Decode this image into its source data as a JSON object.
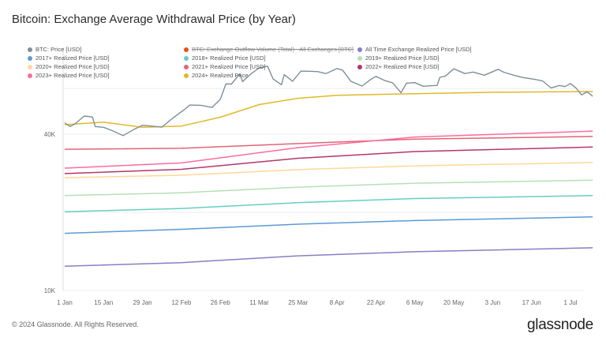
{
  "title": "Bitcoin: Exchange Average Withdrawal Price (by Year)",
  "footer": "© 2024 Glassnode. All Rights Reserved.",
  "logo": "glassnode",
  "chart_data": {
    "type": "line",
    "title": "Bitcoin: Exchange Average Withdrawal Price (by Year)",
    "yscale": "log",
    "ylim": [
      10000,
      86000
    ],
    "y_tick_labels": [
      "10K",
      "40K"
    ],
    "x_tick_labels": [
      "1 Jan",
      "15 Jan",
      "29 Jan",
      "12 Feb",
      "26 Feb",
      "11 Mar",
      "25 Mar",
      "8 Apr",
      "22 Apr",
      "6 May",
      "20 May",
      "3 Jun",
      "17 Jun",
      "1 Jul"
    ],
    "xlim": [
      "2024-01-01",
      "2024-07-09"
    ],
    "grid": true,
    "legend_position": "top",
    "series": [
      {
        "name": "BTC: Price [USD]",
        "color": "#7e8f99",
        "hidden": false,
        "points": [
          [
            "2024-01-01",
            44200
          ],
          [
            "2024-01-03",
            42800
          ],
          [
            "2024-01-05",
            44100
          ],
          [
            "2024-01-08",
            47000
          ],
          [
            "2024-01-11",
            46600
          ],
          [
            "2024-01-12",
            42800
          ],
          [
            "2024-01-15",
            42500
          ],
          [
            "2024-01-18",
            41300
          ],
          [
            "2024-01-22",
            39500
          ],
          [
            "2024-01-26",
            41800
          ],
          [
            "2024-01-29",
            43300
          ],
          [
            "2024-02-01",
            43000
          ],
          [
            "2024-02-05",
            42600
          ],
          [
            "2024-02-08",
            45300
          ],
          [
            "2024-02-10",
            47100
          ],
          [
            "2024-02-13",
            49700
          ],
          [
            "2024-02-15",
            51800
          ],
          [
            "2024-02-19",
            51700
          ],
          [
            "2024-02-23",
            50700
          ],
          [
            "2024-02-26",
            54500
          ],
          [
            "2024-02-28",
            62500
          ],
          [
            "2024-03-01",
            62400
          ],
          [
            "2024-03-04",
            68300
          ],
          [
            "2024-03-05",
            63800
          ],
          [
            "2024-03-08",
            68300
          ],
          [
            "2024-03-11",
            72100
          ],
          [
            "2024-03-14",
            73100
          ],
          [
            "2024-03-16",
            65300
          ],
          [
            "2024-03-19",
            62000
          ],
          [
            "2024-03-20",
            67800
          ],
          [
            "2024-03-23",
            64000
          ],
          [
            "2024-03-26",
            70000
          ],
          [
            "2024-03-29",
            69900
          ],
          [
            "2024-04-01",
            69700
          ],
          [
            "2024-04-04",
            68500
          ],
          [
            "2024-04-08",
            71600
          ],
          [
            "2024-04-10",
            70600
          ],
          [
            "2024-04-13",
            63900
          ],
          [
            "2024-04-17",
            61300
          ],
          [
            "2024-04-20",
            64900
          ],
          [
            "2024-04-22",
            66800
          ],
          [
            "2024-04-25",
            64500
          ],
          [
            "2024-04-28",
            63100
          ],
          [
            "2024-05-01",
            57800
          ],
          [
            "2024-05-03",
            62900
          ],
          [
            "2024-05-06",
            63200
          ],
          [
            "2024-05-09",
            61200
          ],
          [
            "2024-05-12",
            61500
          ],
          [
            "2024-05-14",
            61600
          ],
          [
            "2024-05-15",
            66200
          ],
          [
            "2024-05-17",
            67000
          ],
          [
            "2024-05-20",
            71400
          ],
          [
            "2024-05-24",
            68500
          ],
          [
            "2024-05-27",
            69400
          ],
          [
            "2024-05-31",
            67500
          ],
          [
            "2024-06-05",
            71100
          ],
          [
            "2024-06-07",
            69300
          ],
          [
            "2024-06-11",
            67300
          ],
          [
            "2024-06-14",
            66100
          ],
          [
            "2024-06-18",
            65100
          ],
          [
            "2024-06-21",
            64100
          ],
          [
            "2024-06-24",
            60300
          ],
          [
            "2024-06-27",
            61600
          ],
          [
            "2024-06-29",
            61000
          ],
          [
            "2024-07-01",
            62700
          ],
          [
            "2024-07-03",
            60200
          ],
          [
            "2024-07-05",
            56700
          ],
          [
            "2024-07-07",
            58200
          ],
          [
            "2024-07-09",
            56000
          ]
        ]
      },
      {
        "name": "BTC: Exchange Outflow Volume (Total) - All Exchanges [BTC]",
        "color": "#f24d17",
        "hidden": true,
        "points": []
      },
      {
        "name": "All Time Exchange Realized Price [USD]",
        "color": "#8c7cc4",
        "hidden": false,
        "points": [
          [
            "2024-01-01",
            12400
          ],
          [
            "2024-02-12",
            12800
          ],
          [
            "2024-03-25",
            13600
          ],
          [
            "2024-05-06",
            14100
          ],
          [
            "2024-07-09",
            14600
          ]
        ]
      },
      {
        "name": "2017+ Realized Price [USD]",
        "color": "#5b9bd5",
        "hidden": false,
        "points": [
          [
            "2024-01-01",
            16600
          ],
          [
            "2024-02-12",
            17200
          ],
          [
            "2024-03-25",
            18000
          ],
          [
            "2024-05-06",
            18600
          ],
          [
            "2024-07-09",
            19200
          ]
        ]
      },
      {
        "name": "2018+ Realized Price [USD]",
        "color": "#63cfc0",
        "hidden": false,
        "points": [
          [
            "2024-01-01",
            20100
          ],
          [
            "2024-02-12",
            20700
          ],
          [
            "2024-03-25",
            21800
          ],
          [
            "2024-05-06",
            22600
          ],
          [
            "2024-07-09",
            23200
          ]
        ]
      },
      {
        "name": "2019+ Realized Price [USD]",
        "color": "#b5e0b5",
        "hidden": false,
        "points": [
          [
            "2024-01-01",
            23200
          ],
          [
            "2024-02-12",
            23800
          ],
          [
            "2024-03-25",
            25000
          ],
          [
            "2024-05-06",
            25900
          ],
          [
            "2024-07-09",
            26600
          ]
        ]
      },
      {
        "name": "2020+ Realized Price [USD]",
        "color": "#ffd79a",
        "hidden": false,
        "points": [
          [
            "2024-01-01",
            27200
          ],
          [
            "2024-02-12",
            27800
          ],
          [
            "2024-03-25",
            29200
          ],
          [
            "2024-05-06",
            30200
          ],
          [
            "2024-07-09",
            31100
          ]
        ]
      },
      {
        "name": "2021+ Realized Price [USD]",
        "color": "#e06477",
        "hidden": false,
        "points": [
          [
            "2024-01-01",
            35000
          ],
          [
            "2024-02-12",
            35300
          ],
          [
            "2024-03-25",
            36800
          ],
          [
            "2024-05-06",
            38300
          ],
          [
            "2024-07-09",
            39200
          ]
        ]
      },
      {
        "name": "2022+ Realized Price [USD]",
        "color": "#b5356b",
        "hidden": false,
        "points": [
          [
            "2024-01-01",
            28200
          ],
          [
            "2024-02-12",
            29300
          ],
          [
            "2024-03-25",
            32300
          ],
          [
            "2024-05-06",
            34300
          ],
          [
            "2024-07-09",
            35700
          ]
        ]
      },
      {
        "name": "2023+ Realized Price [USD]",
        "color": "#ff6b9d",
        "hidden": false,
        "points": [
          [
            "2024-01-01",
            29600
          ],
          [
            "2024-02-12",
            31000
          ],
          [
            "2024-03-25",
            35500
          ],
          [
            "2024-05-06",
            39000
          ],
          [
            "2024-07-09",
            41100
          ]
        ]
      },
      {
        "name": "2024+ Realized Price",
        "color": "#e0b92a",
        "hidden": false,
        "points": [
          [
            "2024-01-01",
            43500
          ],
          [
            "2024-01-15",
            44500
          ],
          [
            "2024-01-29",
            42500
          ],
          [
            "2024-02-12",
            43000
          ],
          [
            "2024-02-26",
            46500
          ],
          [
            "2024-03-11",
            52000
          ],
          [
            "2024-03-25",
            55000
          ],
          [
            "2024-04-08",
            56500
          ],
          [
            "2024-05-06",
            57300
          ],
          [
            "2024-06-03",
            58000
          ],
          [
            "2024-07-09",
            58400
          ]
        ]
      }
    ]
  }
}
